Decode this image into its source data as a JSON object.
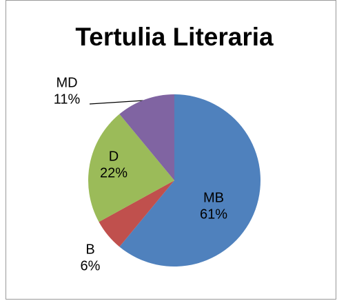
{
  "chart_data": {
    "type": "pie",
    "title": "Tertulia Literaria",
    "categories": [
      "MB",
      "B",
      "D",
      "MD"
    ],
    "values": [
      61,
      6,
      22,
      11
    ],
    "value_labels": [
      "61%",
      "6%",
      "22%",
      "11%"
    ],
    "colors": [
      "#4f81bd",
      "#c0504d",
      "#9bbb59",
      "#8064a2"
    ]
  }
}
